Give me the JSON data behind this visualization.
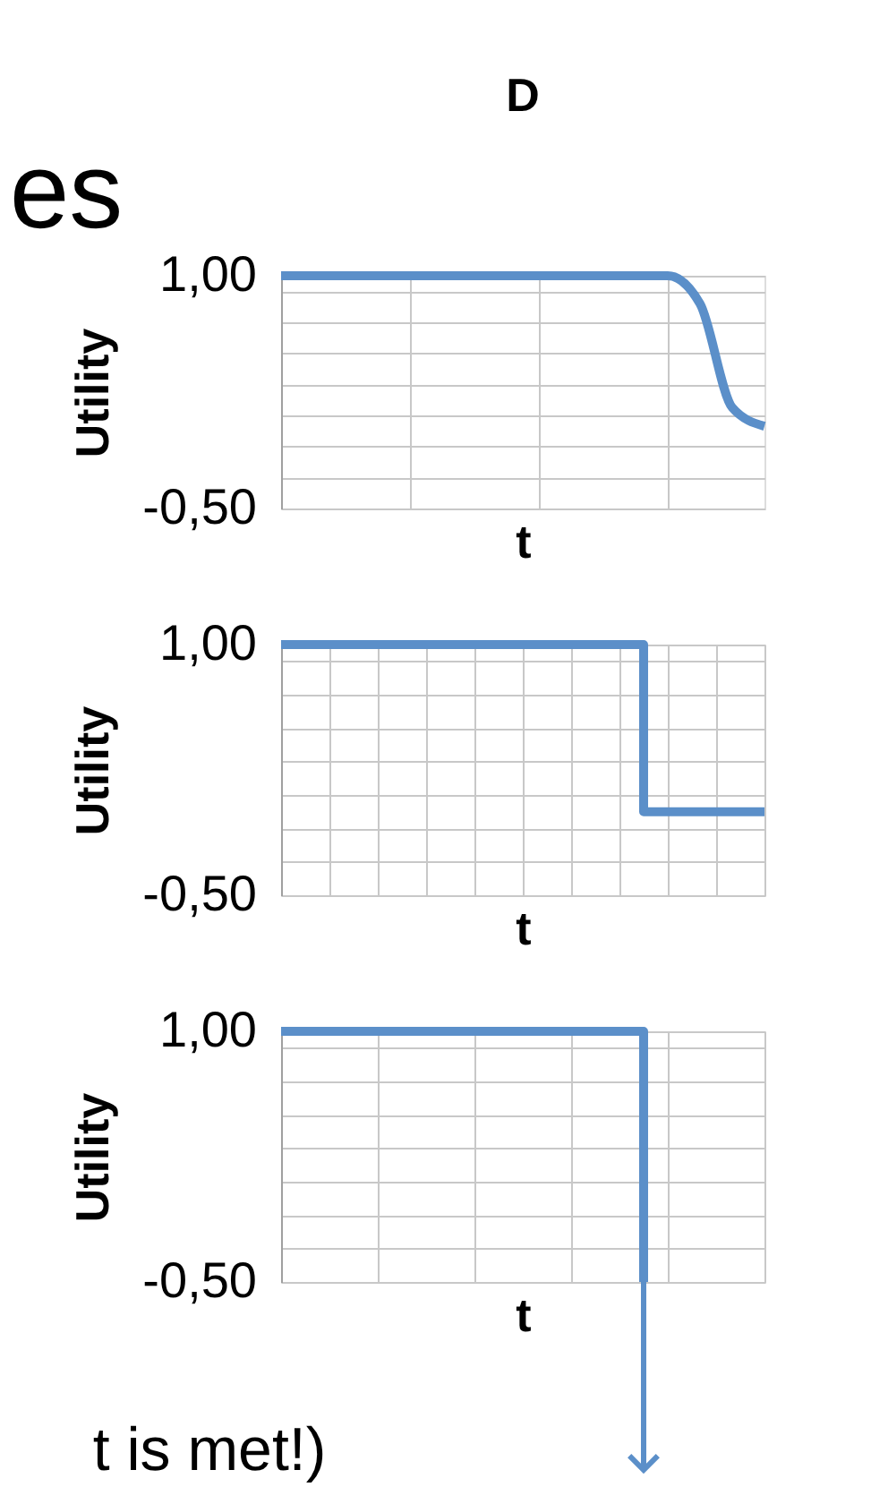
{
  "chart_data": [
    {
      "type": "line",
      "title": "D",
      "annotations": [
        "es"
      ],
      "xlabel": "t",
      "ylabel": "Utility",
      "color": "#5b8fc9",
      "categories": [
        null,
        null,
        null,
        null,
        null,
        null,
        null,
        null,
        null,
        null,
        null,
        null,
        null,
        null,
        null,
        null
      ],
      "values": [
        1,
        1,
        1,
        1,
        1,
        1,
        1,
        1,
        1,
        1,
        1,
        1,
        1,
        0.82,
        0.15,
        0.03
      ],
      "ylim": [
        -0.5,
        1.0
      ],
      "yticks": [
        {
          "value": -0.5,
          "label": "-0,50"
        },
        {
          "value": -0.3,
          "label": null
        },
        {
          "value": -0.1,
          "label": null
        },
        {
          "value": 0.1,
          "label": null
        },
        {
          "value": 0.3,
          "label": null
        },
        {
          "value": 0.5,
          "label": null
        },
        {
          "value": 0.7,
          "label": null
        },
        {
          "value": 0.9,
          "label": null
        },
        {
          "value": 1.0,
          "label": "1,00"
        }
      ],
      "grid": true,
      "tick_labels": "y"
    },
    {
      "type": "step",
      "xlabel": "t",
      "ylabel": "Utility",
      "color": "#5b8fc9",
      "categories": [
        null,
        null,
        null,
        null,
        null
      ],
      "values": [
        1,
        1,
        1,
        0,
        0
      ],
      "ylim": [
        -0.5,
        1.0
      ],
      "yticks": [
        {
          "value": -0.5,
          "label": "-0,50"
        },
        {
          "value": -0.3,
          "label": null
        },
        {
          "value": -0.1,
          "label": null
        },
        {
          "value": 0.1,
          "label": null
        },
        {
          "value": 0.3,
          "label": null
        },
        {
          "value": 0.5,
          "label": null
        },
        {
          "value": 0.7,
          "label": null
        },
        {
          "value": 0.9,
          "label": null
        },
        {
          "value": 1.0,
          "label": "1,00"
        }
      ],
      "grid": true,
      "tick_labels": "y"
    },
    {
      "type": "step",
      "annotations": [
        "t is met!)"
      ],
      "xlabel": "t",
      "ylabel": "Utility",
      "color": "#5b8fc9",
      "categories": [
        null,
        null,
        null,
        null,
        null
      ],
      "values": [
        1,
        1,
        1,
        -0.5,
        null
      ],
      "ylim": [
        -0.5,
        1.0
      ],
      "yticks": [
        {
          "value": -0.5,
          "label": "-0,50"
        },
        {
          "value": -0.3,
          "label": null
        },
        {
          "value": -0.1,
          "label": null
        },
        {
          "value": 0.1,
          "label": null
        },
        {
          "value": 0.3,
          "label": null
        },
        {
          "value": 0.5,
          "label": null
        },
        {
          "value": 0.7,
          "label": null
        },
        {
          "value": 0.9,
          "label": null
        },
        {
          "value": 1.0,
          "label": "1,00"
        }
      ],
      "grid": true,
      "tick_labels": "y"
    }
  ]
}
